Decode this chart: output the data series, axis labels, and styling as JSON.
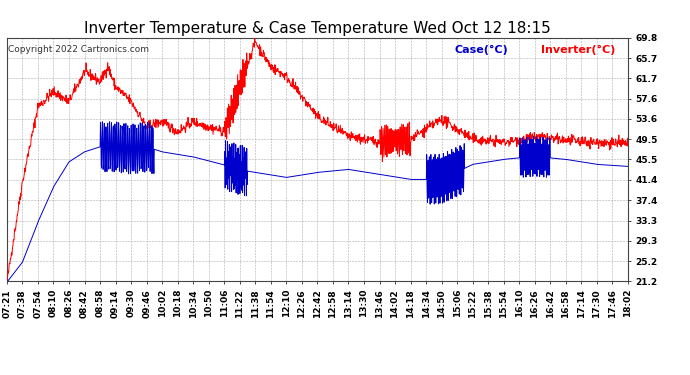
{
  "title": "Inverter Temperature & Case Temperature Wed Oct 12 18:15",
  "copyright": "Copyright 2022 Cartronics.com",
  "legend_case": "Case(°C)",
  "legend_inverter": "Inverter(°C)",
  "yticks": [
    21.2,
    25.2,
    29.3,
    33.3,
    37.4,
    41.4,
    45.5,
    49.5,
    53.6,
    57.6,
    61.7,
    65.7,
    69.8
  ],
  "ylim": [
    21.2,
    69.8
  ],
  "xtick_labels": [
    "07:21",
    "07:38",
    "07:54",
    "08:10",
    "08:26",
    "08:42",
    "08:58",
    "09:14",
    "09:30",
    "09:46",
    "10:02",
    "10:18",
    "10:34",
    "10:50",
    "11:06",
    "11:22",
    "11:38",
    "11:54",
    "12:10",
    "12:26",
    "12:42",
    "12:58",
    "13:14",
    "13:30",
    "13:46",
    "14:02",
    "14:18",
    "14:34",
    "14:50",
    "15:06",
    "15:22",
    "15:38",
    "15:54",
    "16:10",
    "16:26",
    "16:42",
    "16:58",
    "17:14",
    "17:30",
    "17:46",
    "18:02"
  ],
  "bg_color": "#ffffff",
  "grid_color": "#999999",
  "inverter_color": "#ff0000",
  "case_color": "#0000cc",
  "title_fontsize": 11,
  "tick_fontsize": 6.5,
  "copyright_fontsize": 6.5,
  "legend_fontsize": 8
}
